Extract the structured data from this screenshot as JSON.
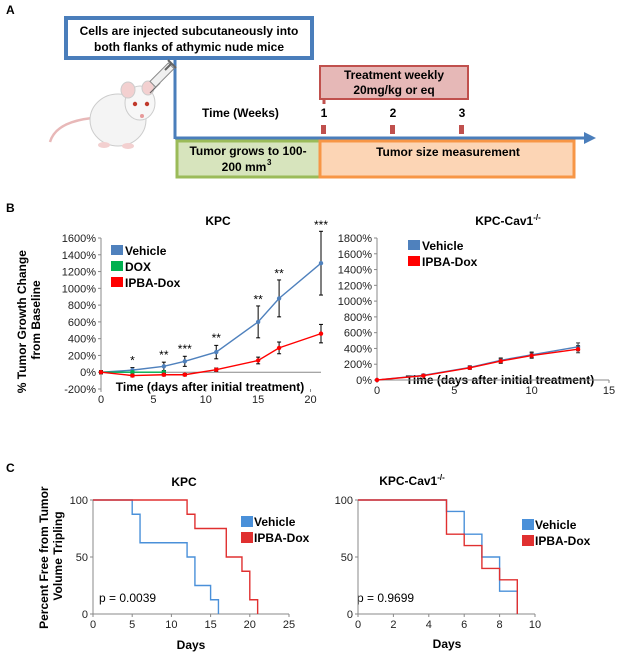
{
  "panels": {
    "A": "A",
    "B": "B",
    "C": "C"
  },
  "panelA": {
    "injection_text": [
      "Cells are injected subcutaneously into",
      "both flanks of athymic nude mice"
    ],
    "treatment_text": [
      "Treatment weekly",
      "20mg/kg or eq"
    ],
    "time_label": "Time (Weeks)",
    "week_ticks": [
      "1",
      "2",
      "3"
    ],
    "growth_text": [
      "Tumor grows to 100-",
      "200 mm"
    ],
    "growth_superscript": "3",
    "measurement_text": "Tumor size measurement",
    "colors": {
      "blue_box": "#4a7ebb",
      "arrow": "#4a7ebb",
      "treatment_fill": "#e6b8b7",
      "treatment_border": "#c0504d",
      "green_fill": "#d7e4bd",
      "green_border": "#9bbb59",
      "orange_fill": "#fcd5b5",
      "orange_border": "#f79646",
      "tick_red": "#c0504d"
    }
  },
  "chart_data": [
    {
      "type": "line",
      "title": "KPC",
      "ylabel": "% Tumor Growth Change from Baseline",
      "xlabel": "Time (days after initial treatment)",
      "xlim": [
        0,
        21
      ],
      "ylim": [
        -200,
        1600
      ],
      "xticks": [
        "0",
        "5",
        "10",
        "15",
        "20"
      ],
      "yticks": [
        "-200%",
        "0%",
        "200%",
        "400%",
        "600%",
        "800%",
        "1000%",
        "1200%",
        "1400%",
        "1600%"
      ],
      "series": [
        {
          "name": "Vehicle",
          "color": "#4f81bd",
          "x": [
            0,
            3,
            6,
            8,
            11,
            15,
            17,
            21
          ],
          "values": [
            0,
            25,
            70,
            130,
            240,
            600,
            880,
            1300
          ],
          "err": [
            20,
            30,
            50,
            60,
            80,
            190,
            220,
            380
          ]
        },
        {
          "name": "DOX",
          "color": "#00b050",
          "x": [
            0,
            3,
            6
          ],
          "values": [
            0,
            0,
            0
          ],
          "err": [
            10,
            10,
            10
          ]
        },
        {
          "name": "IPBA-Dox",
          "color": "#ff0000",
          "x": [
            0,
            3,
            6,
            8,
            11,
            15,
            17,
            21
          ],
          "values": [
            0,
            -40,
            -30,
            -30,
            30,
            140,
            290,
            460
          ],
          "err": [
            10,
            15,
            15,
            15,
            20,
            40,
            70,
            110
          ]
        }
      ],
      "annotations": [
        {
          "x": 3,
          "y": 90,
          "text": "*"
        },
        {
          "x": 6,
          "y": 160,
          "text": "**"
        },
        {
          "x": 8,
          "y": 230,
          "text": "***"
        },
        {
          "x": 11,
          "y": 360,
          "text": "**"
        },
        {
          "x": 15,
          "y": 820,
          "text": "**"
        },
        {
          "x": 17,
          "y": 1130,
          "text": "**"
        },
        {
          "x": 21,
          "y": 1710,
          "text": "***"
        }
      ]
    },
    {
      "type": "line",
      "title": "KPC-Cav1",
      "title_superscript": "-/-",
      "ylabel": "",
      "xlabel": "Time (days after initial treatment)",
      "xlim": [
        0,
        15
      ],
      "ylim": [
        0,
        1800
      ],
      "xticks": [
        "0",
        "5",
        "10",
        "15"
      ],
      "yticks": [
        "0%",
        "200%",
        "400%",
        "600%",
        "800%",
        "1000%",
        "1200%",
        "1400%",
        "1600%",
        "1800%"
      ],
      "series": [
        {
          "name": "Vehicle",
          "color": "#4f81bd",
          "x": [
            0,
            3,
            6,
            8,
            10,
            13
          ],
          "values": [
            0,
            60,
            160,
            250,
            320,
            420
          ],
          "err": [
            5,
            15,
            20,
            30,
            35,
            50
          ]
        },
        {
          "name": "IPBA-Dox",
          "color": "#ff0000",
          "x": [
            0,
            3,
            6,
            8,
            10,
            13
          ],
          "values": [
            0,
            55,
            155,
            240,
            310,
            390
          ],
          "err": [
            5,
            12,
            20,
            30,
            35,
            45
          ]
        }
      ]
    },
    {
      "type": "line",
      "subtype": "kaplan-meier",
      "title": "KPC",
      "ylabel": "Percent Free from Tumor Volume Tripling",
      "xlabel": "Days",
      "xlim": [
        0,
        25
      ],
      "ylim": [
        0,
        100
      ],
      "xticks": [
        "0",
        "5",
        "10",
        "15",
        "20",
        "25"
      ],
      "yticks": [
        "0",
        "50",
        "100"
      ],
      "p_value": "p = 0.0039",
      "series": [
        {
          "name": "Vehicle",
          "color": "#4a90d9",
          "x": [
            0,
            5,
            6,
            12,
            13,
            15,
            16
          ],
          "values": [
            100,
            87.5,
            62.5,
            50,
            25,
            12.5,
            0
          ]
        },
        {
          "name": "IPBA-Dox",
          "color": "#e03030",
          "x": [
            0,
            12,
            13,
            17,
            19,
            20,
            21
          ],
          "values": [
            100,
            87.5,
            75,
            50,
            37.5,
            12.5,
            0
          ]
        }
      ]
    },
    {
      "type": "line",
      "subtype": "kaplan-meier",
      "title": "KPC-Cav1",
      "title_superscript": "-/-",
      "ylabel": "",
      "xlabel": "Days",
      "xlim": [
        0,
        10
      ],
      "ylim": [
        0,
        100
      ],
      "xticks": [
        "0",
        "2",
        "4",
        "6",
        "8",
        "10"
      ],
      "yticks": [
        "0",
        "50",
        "100"
      ],
      "p_value": "p = 0.9699",
      "series": [
        {
          "name": "Vehicle",
          "color": "#4a90d9",
          "x": [
            0,
            5,
            6,
            7,
            8,
            9
          ],
          "values": [
            100,
            90,
            70,
            50,
            20,
            0
          ]
        },
        {
          "name": "IPBA-Dox",
          "color": "#e03030",
          "x": [
            0,
            5,
            6,
            7,
            8,
            9
          ],
          "values": [
            100,
            70,
            60,
            40,
            30,
            0
          ]
        }
      ]
    }
  ]
}
